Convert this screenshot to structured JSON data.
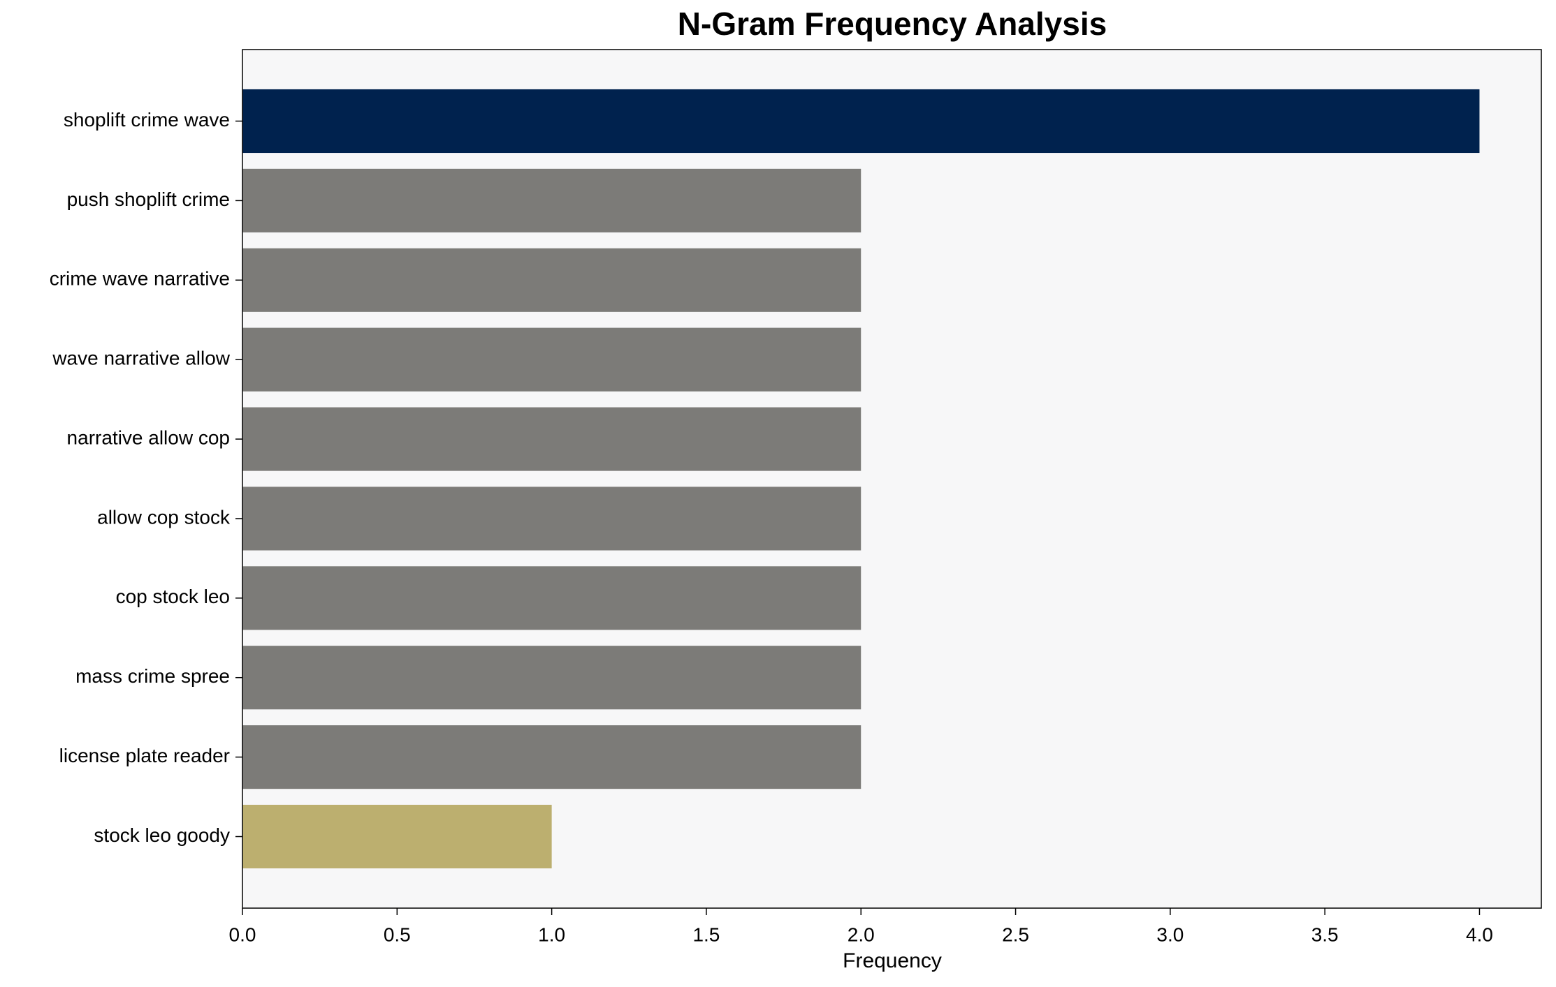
{
  "chart_data": {
    "type": "barh",
    "title": "N-Gram Frequency Analysis",
    "xlabel": "Frequency",
    "categories": [
      "shoplift crime wave",
      "push shoplift crime",
      "crime wave narrative",
      "wave narrative allow",
      "narrative allow cop",
      "allow cop stock",
      "cop stock leo",
      "mass crime spree",
      "license plate reader",
      "stock leo goody"
    ],
    "values": [
      4,
      2,
      2,
      2,
      2,
      2,
      2,
      2,
      2,
      1
    ],
    "colors": [
      "#00224e",
      "#7c7b78",
      "#7c7b78",
      "#7c7b78",
      "#7c7b78",
      "#7c7b78",
      "#7c7b78",
      "#7c7b78",
      "#7c7b78",
      "#bcaf6f"
    ],
    "xlim": [
      0,
      4.2
    ],
    "xticks": [
      {
        "value": 0,
        "label": "0.0"
      },
      {
        "value": 0.5,
        "label": "0.5"
      },
      {
        "value": 1,
        "label": "1.0"
      },
      {
        "value": 1.5,
        "label": "1.5"
      },
      {
        "value": 2,
        "label": "2.0"
      },
      {
        "value": 2.5,
        "label": "2.5"
      },
      {
        "value": 3,
        "label": "3.0"
      },
      {
        "value": 3.5,
        "label": "3.5"
      },
      {
        "value": 4,
        "label": "4.0"
      }
    ],
    "grid": false
  }
}
